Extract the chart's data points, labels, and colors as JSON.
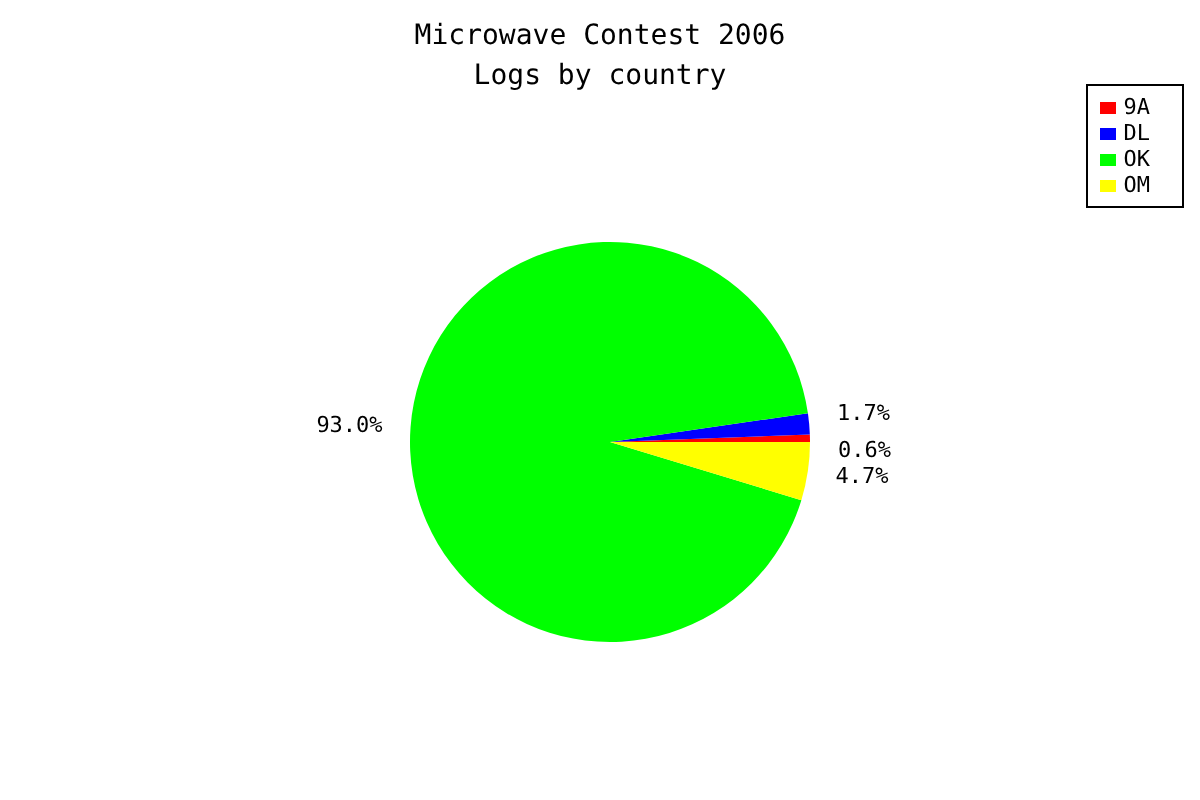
{
  "chart_data": {
    "type": "pie",
    "title": "Microwave Contest 2006",
    "subtitle": "Logs by country",
    "categories": [
      "9A",
      "DL",
      "OK",
      "OM"
    ],
    "values": [
      0.6,
      1.7,
      93.0,
      4.7
    ],
    "value_labels": [
      "0.6%",
      "1.7%",
      "93.0%",
      "4.7%"
    ],
    "colors": [
      "#ff0000",
      "#0000ff",
      "#00ff00",
      "#ffff00"
    ],
    "legend": "top right"
  }
}
